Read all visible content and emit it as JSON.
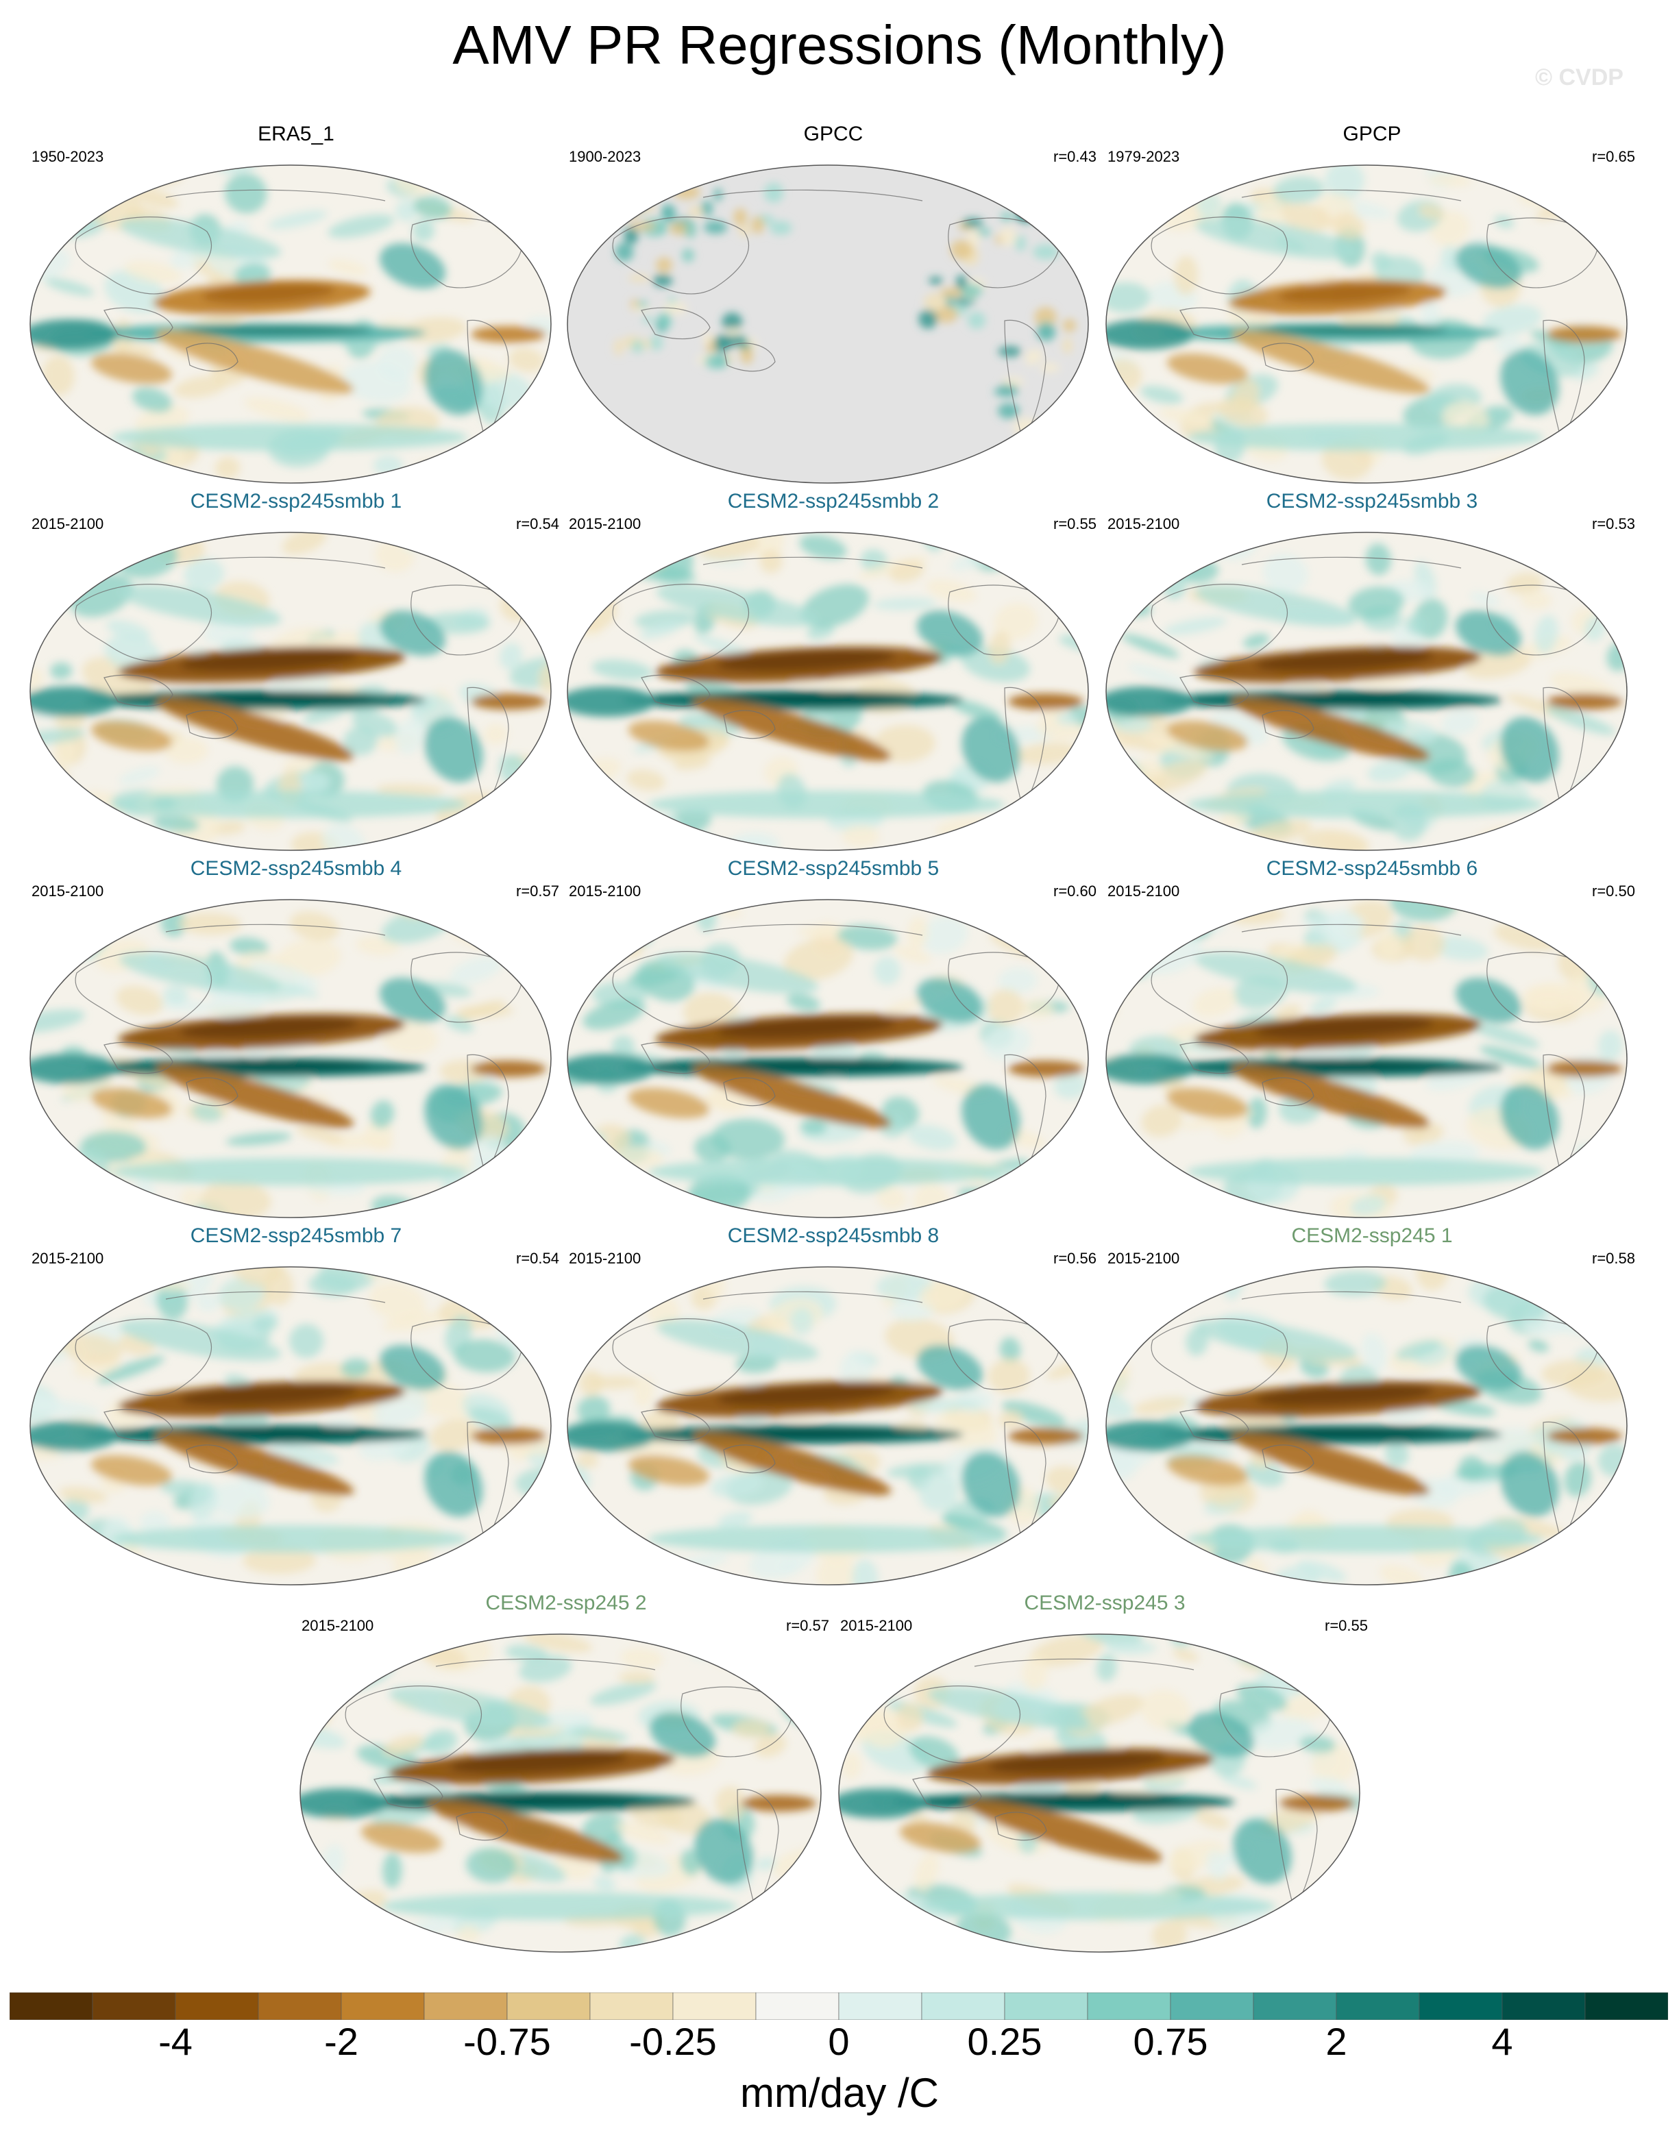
{
  "title": "AMV PR Regressions (Monthly)",
  "watermark": "© CVDP",
  "chart_data": {
    "type": "heatmap",
    "variable": "PR",
    "units": "mm/day /C",
    "projection": "Robinson (Pacific-centered)",
    "colorbar": {
      "colors": [
        "#543005",
        "#6e3f0a",
        "#8c510a",
        "#a96a1e",
        "#bf812d",
        "#d4a760",
        "#e3c78a",
        "#f0e0b8",
        "#f6ecd2",
        "#f5f5f2",
        "#dff1ee",
        "#c7eae5",
        "#a6ddd4",
        "#80cdc1",
        "#5ab4ac",
        "#35978f",
        "#1a7f75",
        "#01665e",
        "#024f47",
        "#003c30"
      ],
      "tick_labels": [
        "-4",
        "-2",
        "-0.75",
        "-0.25",
        "0",
        "0.25",
        "0.75",
        "2",
        "4"
      ]
    },
    "panels": [
      {
        "title": "ERA5_1",
        "period": "1950-2023",
        "r": "",
        "title_color": "#000000"
      },
      {
        "title": "GPCC",
        "period": "1900-2023",
        "r": "r=0.43",
        "title_color": "#000000"
      },
      {
        "title": "GPCP",
        "period": "1979-2023",
        "r": "r=0.65",
        "title_color": "#000000"
      },
      {
        "title": "CESM2-ssp245smbb 1",
        "period": "2015-2100",
        "r": "r=0.54",
        "title_color": "#1f6e8c"
      },
      {
        "title": "CESM2-ssp245smbb 2",
        "period": "2015-2100",
        "r": "r=0.55",
        "title_color": "#1f6e8c"
      },
      {
        "title": "CESM2-ssp245smbb 3",
        "period": "2015-2100",
        "r": "r=0.53",
        "title_color": "#1f6e8c"
      },
      {
        "title": "CESM2-ssp245smbb 4",
        "period": "2015-2100",
        "r": "r=0.57",
        "title_color": "#1f6e8c"
      },
      {
        "title": "CESM2-ssp245smbb 5",
        "period": "2015-2100",
        "r": "r=0.60",
        "title_color": "#1f6e8c"
      },
      {
        "title": "CESM2-ssp245smbb 6",
        "period": "2015-2100",
        "r": "r=0.50",
        "title_color": "#1f6e8c"
      },
      {
        "title": "CESM2-ssp245smbb 7",
        "period": "2015-2100",
        "r": "r=0.54",
        "title_color": "#1f6e8c"
      },
      {
        "title": "CESM2-ssp245smbb 8",
        "period": "2015-2100",
        "r": "r=0.56",
        "title_color": "#1f6e8c"
      },
      {
        "title": "CESM2-ssp245 1",
        "period": "2015-2100",
        "r": "r=0.58",
        "title_color": "#6e9b6e"
      },
      {
        "title": "CESM2-ssp245 2",
        "period": "2015-2100",
        "r": "r=0.57",
        "title_color": "#6e9b6e"
      },
      {
        "title": "CESM2-ssp245 3",
        "period": "2015-2100",
        "r": "r=0.55",
        "title_color": "#6e9b6e"
      }
    ]
  }
}
